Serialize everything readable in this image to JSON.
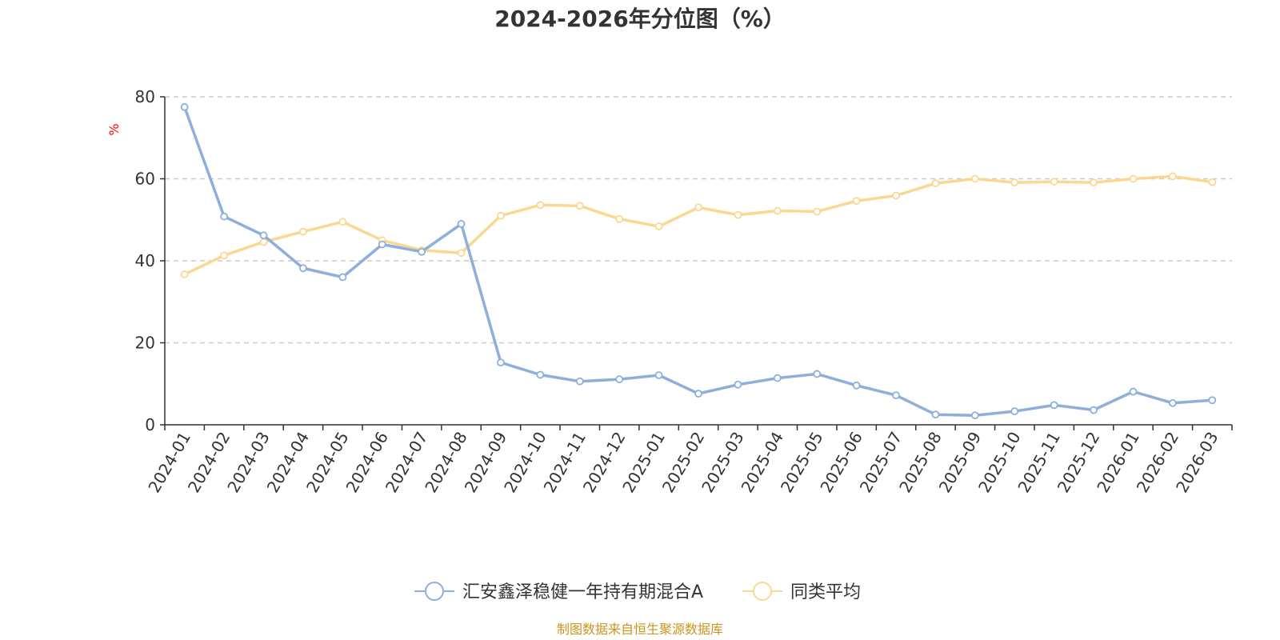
{
  "source_note": "制图数据来自恒生聚源数据库",
  "colors": {
    "fund": "#8eaedc",
    "average": "#fbd892",
    "grid": "#cccccc",
    "axis": "#333333",
    "unit": "#ff0000",
    "source": "#c8961e"
  },
  "chart_data": {
    "type": "line",
    "title": "2024-2026年分位图（%）",
    "ylabel": "%",
    "xlabel": "",
    "ylim": [
      0,
      80
    ],
    "yticks": [
      0,
      20,
      40,
      60,
      80
    ],
    "grid": true,
    "legend_position": "bottom",
    "categories": [
      "2024-01",
      "2024-02",
      "2024-03",
      "2024-04",
      "2024-05",
      "2024-06",
      "2024-07",
      "2024-08",
      "2024-09",
      "2024-10",
      "2024-11",
      "2024-12",
      "2025-01",
      "2025-02",
      "2025-03",
      "2025-04",
      "2025-05",
      "2025-06",
      "2025-07",
      "2025-08",
      "2025-09",
      "2025-10",
      "2025-11",
      "2025-12",
      "2026-01",
      "2026-02",
      "2026-03"
    ],
    "series": [
      {
        "name": "汇安鑫泽稳健一年持有期混合A",
        "values": [
          77.5,
          50.8,
          46.2,
          38.2,
          36.0,
          44.0,
          42.2,
          49.0,
          15.2,
          12.2,
          10.6,
          11.1,
          12.1,
          7.6,
          9.8,
          11.4,
          12.4,
          9.6,
          7.2,
          2.5,
          2.3,
          3.3,
          4.8,
          3.6,
          8.1,
          5.3,
          6.0
        ]
      },
      {
        "name": "同类平均",
        "values": [
          36.7,
          41.3,
          44.6,
          47.1,
          49.5,
          45.0,
          42.6,
          41.9,
          51.0,
          53.6,
          53.4,
          50.2,
          48.4,
          53.0,
          51.2,
          52.2,
          52.0,
          54.6,
          55.9,
          58.9,
          60.0,
          59.1,
          59.3,
          59.1,
          60.0,
          60.6,
          59.2
        ]
      }
    ]
  }
}
